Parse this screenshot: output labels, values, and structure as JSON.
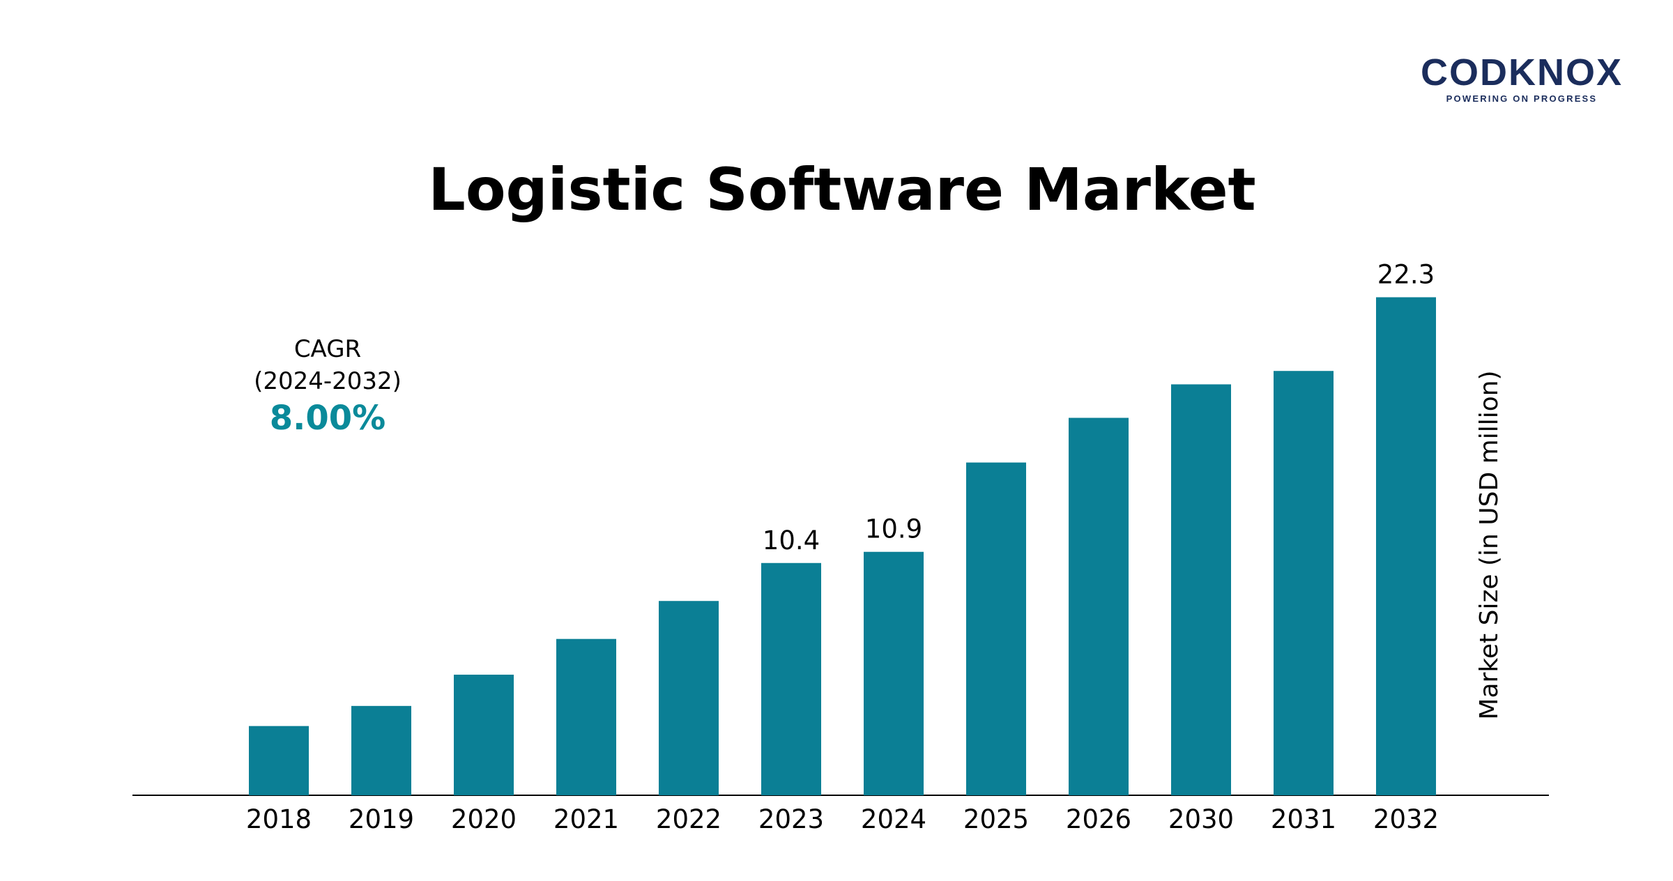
{
  "brand": {
    "name": "CODKNOX",
    "tagline": "POWERING ON PROGRESS"
  },
  "title": "Logistic Software Market",
  "cagr": {
    "label_line1": "CAGR",
    "label_line2": "(2024-2032)",
    "value": "8.00%"
  },
  "colors": {
    "bar": "#0b7f95",
    "cagr_value": "#0a8a9a",
    "brand": "#1b2d5c"
  },
  "chart_data": {
    "type": "bar",
    "title": "Logistic Software Market",
    "ylabel": "Market Size (in USD million)",
    "xlabel": "",
    "categories": [
      "2018",
      "2019",
      "2020",
      "2021",
      "2022",
      "2023",
      "2024",
      "2025",
      "2026",
      "2030",
      "2031",
      "2032"
    ],
    "values": [
      3.1,
      4.0,
      5.4,
      7.0,
      8.7,
      10.4,
      10.9,
      14.9,
      16.9,
      18.4,
      19.0,
      22.3
    ],
    "data_labels": [
      "",
      "",
      "",
      "",
      "",
      "10.4",
      "10.9",
      "",
      "",
      "",
      "",
      "22.3"
    ],
    "ylim": [
      0,
      24
    ],
    "grid": false,
    "legend": "none"
  }
}
